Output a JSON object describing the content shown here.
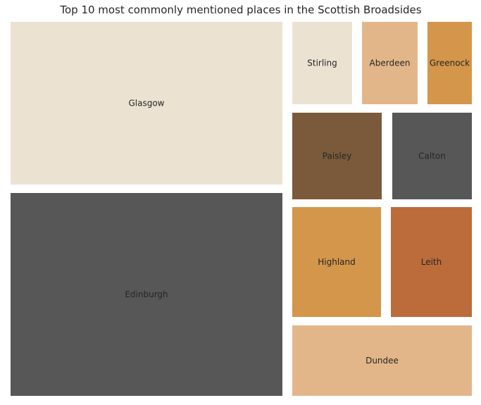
{
  "chart_data": {
    "type": "treemap",
    "title": "Top 10 most commonly mentioned places in the Scottish Broadsides",
    "categories": [
      "Glasgow",
      "Edinburgh",
      "Stirling",
      "Aberdeen",
      "Greenock",
      "Paisley",
      "Calton",
      "Highland",
      "Leith",
      "Dundee"
    ],
    "values": [
      1000,
      1240,
      115,
      112,
      90,
      186,
      170,
      240,
      215,
      175
    ],
    "colors": [
      "#ebe2d2",
      "#575757",
      "#ebe2d2",
      "#e3b68a",
      "#d4964a",
      "#7a5a3a",
      "#575757",
      "#d4964a",
      "#bb6c3a",
      "#e3b68a"
    ]
  }
}
